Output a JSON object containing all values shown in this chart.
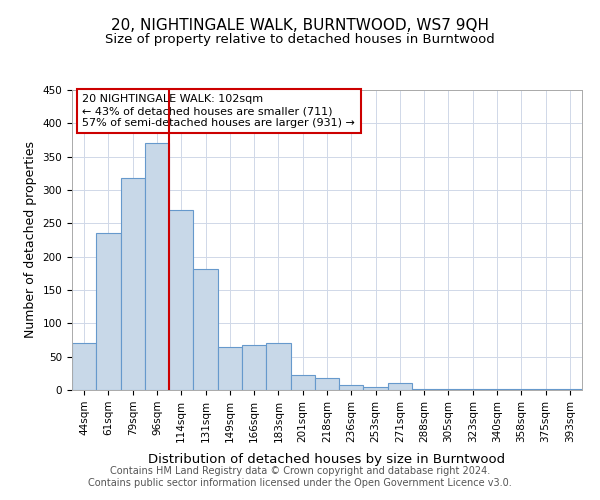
{
  "title": "20, NIGHTINGALE WALK, BURNTWOOD, WS7 9QH",
  "subtitle": "Size of property relative to detached houses in Burntwood",
  "xlabel": "Distribution of detached houses by size in Burntwood",
  "ylabel": "Number of detached properties",
  "categories": [
    "44sqm",
    "61sqm",
    "79sqm",
    "96sqm",
    "114sqm",
    "131sqm",
    "149sqm",
    "166sqm",
    "183sqm",
    "201sqm",
    "218sqm",
    "236sqm",
    "253sqm",
    "271sqm",
    "288sqm",
    "305sqm",
    "323sqm",
    "340sqm",
    "358sqm",
    "375sqm",
    "393sqm"
  ],
  "values": [
    70,
    235,
    318,
    370,
    270,
    182,
    65,
    68,
    70,
    22,
    18,
    7,
    5,
    11,
    1,
    1,
    1,
    1,
    1,
    1,
    2
  ],
  "bar_color": "#c8d8e8",
  "bar_edge_color": "#6699cc",
  "vline_x": 3.5,
  "vline_color": "#cc0000",
  "annotation_title": "20 NIGHTINGALE WALK: 102sqm",
  "annotation_line1": "← 43% of detached houses are smaller (711)",
  "annotation_line2": "57% of semi-detached houses are larger (931) →",
  "annotation_box_color": "#cc0000",
  "ylim": [
    0,
    450
  ],
  "footer_line1": "Contains HM Land Registry data © Crown copyright and database right 2024.",
  "footer_line2": "Contains public sector information licensed under the Open Government Licence v3.0.",
  "title_fontsize": 11,
  "subtitle_fontsize": 9.5,
  "xlabel_fontsize": 9.5,
  "ylabel_fontsize": 9,
  "tick_fontsize": 7.5,
  "footer_fontsize": 7,
  "ann_fontsize": 8
}
